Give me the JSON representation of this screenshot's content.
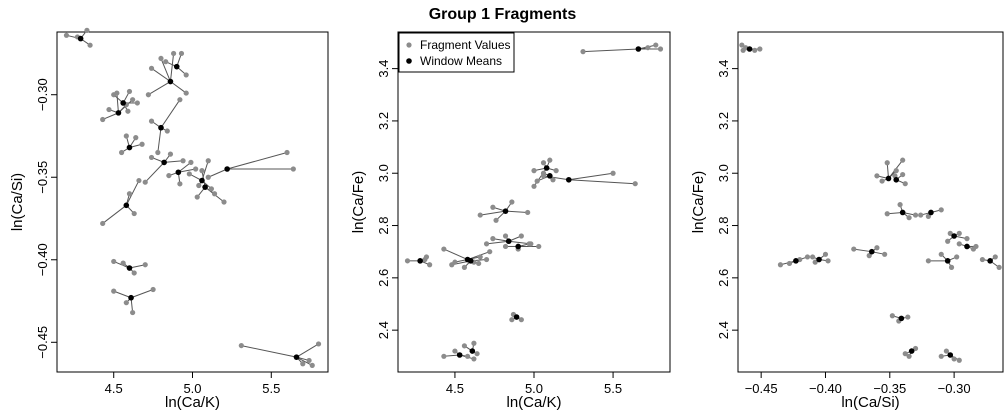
{
  "title": "Group 1 Fragments",
  "colors": {
    "fragment": "#8c8c8c",
    "mean": "#000000",
    "segment": "#555555"
  },
  "legend": {
    "fragment_label": "Fragment Values",
    "mean_label": "Window Means"
  },
  "chart_data": [
    {
      "type": "scatter",
      "xlabel": "ln(Ca/K)",
      "ylabel": "ln(Ca/Si)",
      "xlim": [
        4.14,
        5.86
      ],
      "ylim": [
        -0.468,
        -0.262
      ],
      "xticks": [
        4.5,
        5.0,
        5.5
      ],
      "xtick_labels": [
        "4.5",
        "5.0",
        "5.5"
      ],
      "yticks": [
        -0.45,
        -0.4,
        -0.35,
        -0.3
      ],
      "ytick_labels": [
        "−0.45",
        "−0.40",
        "−0.35",
        "−0.30"
      ],
      "groups": [
        {
          "mean": [
            4.29,
            -0.266
          ],
          "points": [
            [
              4.2,
              -0.264
            ],
            [
              4.27,
              -0.265
            ],
            [
              4.33,
              -0.261
            ],
            [
              4.35,
              -0.27
            ]
          ]
        },
        {
          "mean": [
            4.53,
            -0.311
          ],
          "points": [
            [
              4.43,
              -0.315
            ],
            [
              4.47,
              -0.309
            ],
            [
              4.52,
              -0.299
            ],
            [
              4.58,
              -0.306
            ],
            [
              4.62,
              -0.303
            ]
          ]
        },
        {
          "mean": [
            4.56,
            -0.305
          ],
          "points": [
            [
              4.5,
              -0.3
            ],
            [
              4.6,
              -0.298
            ],
            [
              4.65,
              -0.305
            ],
            [
              4.59,
              -0.31
            ]
          ]
        },
        {
          "mean": [
            4.86,
            -0.292
          ],
          "points": [
            [
              4.74,
              -0.284
            ],
            [
              4.8,
              -0.278
            ],
            [
              4.88,
              -0.275
            ],
            [
              4.96,
              -0.299
            ],
            [
              4.72,
              -0.3
            ]
          ]
        },
        {
          "mean": [
            4.9,
            -0.283
          ],
          "points": [
            [
              4.83,
              -0.28
            ],
            [
              4.93,
              -0.275
            ],
            [
              4.96,
              -0.288
            ]
          ]
        },
        {
          "mean": [
            4.6,
            -0.332
          ],
          "points": [
            [
              4.55,
              -0.335
            ],
            [
              4.58,
              -0.325
            ],
            [
              4.64,
              -0.326
            ],
            [
              4.68,
              -0.33
            ]
          ]
        },
        {
          "mean": [
            4.8,
            -0.32
          ],
          "points": [
            [
              4.74,
              -0.316
            ],
            [
              4.84,
              -0.322
            ],
            [
              4.92,
              -0.303
            ],
            [
              4.78,
              -0.335
            ]
          ]
        },
        {
          "mean": [
            4.82,
            -0.341
          ],
          "points": [
            [
              4.74,
              -0.338
            ],
            [
              4.86,
              -0.336
            ],
            [
              4.94,
              -0.34
            ],
            [
              4.7,
              -0.353
            ]
          ]
        },
        {
          "mean": [
            4.91,
            -0.347
          ],
          "points": [
            [
              4.85,
              -0.349
            ],
            [
              4.92,
              -0.354
            ],
            [
              4.99,
              -0.341
            ],
            [
              5.02,
              -0.345
            ]
          ]
        },
        {
          "mean": [
            5.06,
            -0.352
          ],
          "points": [
            [
              4.98,
              -0.348
            ],
            [
              5.04,
              -0.355
            ],
            [
              5.1,
              -0.34
            ],
            [
              5.12,
              -0.357
            ]
          ]
        },
        {
          "mean": [
            5.08,
            -0.356
          ],
          "points": [
            [
              5.03,
              -0.362
            ],
            [
              5.14,
              -0.36
            ],
            [
              5.2,
              -0.365
            ],
            [
              5.06,
              -0.346
            ]
          ]
        },
        {
          "mean": [
            5.22,
            -0.345
          ],
          "points": [
            [
              5.1,
              -0.35
            ],
            [
              5.64,
              -0.345
            ],
            [
              5.6,
              -0.335
            ]
          ]
        },
        {
          "mean": [
            4.58,
            -0.367
          ],
          "points": [
            [
              4.43,
              -0.378
            ],
            [
              4.6,
              -0.36
            ],
            [
              4.66,
              -0.352
            ],
            [
              4.63,
              -0.372
            ]
          ]
        },
        {
          "mean": [
            4.6,
            -0.405
          ],
          "points": [
            [
              4.5,
              -0.401
            ],
            [
              4.56,
              -0.402
            ],
            [
              4.63,
              -0.408
            ],
            [
              4.7,
              -0.403
            ]
          ]
        },
        {
          "mean": [
            4.61,
            -0.423
          ],
          "points": [
            [
              4.5,
              -0.419
            ],
            [
              4.58,
              -0.426
            ],
            [
              4.62,
              -0.432
            ],
            [
              4.75,
              -0.418
            ]
          ]
        },
        {
          "mean": [
            5.66,
            -0.459
          ],
          "points": [
            [
              5.31,
              -0.452
            ],
            [
              5.7,
              -0.463
            ],
            [
              5.76,
              -0.464
            ],
            [
              5.8,
              -0.451
            ],
            [
              5.74,
              -0.461
            ]
          ]
        }
      ]
    },
    {
      "type": "scatter",
      "xlabel": "ln(Ca/K)",
      "ylabel": "ln(Ca/Fe)",
      "xlim": [
        4.14,
        5.86
      ],
      "ylim": [
        2.24,
        3.54
      ],
      "xticks": [
        4.5,
        5.0,
        5.5
      ],
      "xtick_labels": [
        "4.5",
        "5.0",
        "5.5"
      ],
      "yticks": [
        2.4,
        2.6,
        2.8,
        3.0,
        3.2,
        3.4
      ],
      "ytick_labels": [
        "2.4",
        "2.6",
        "2.8",
        "3.0",
        "3.2",
        "3.4"
      ],
      "legend_position": "top-left",
      "groups": [
        {
          "mean": [
            5.66,
            3.475
          ],
          "points": [
            [
              5.31,
              3.465
            ],
            [
              5.72,
              3.48
            ],
            [
              5.77,
              3.49
            ],
            [
              5.8,
              3.475
            ]
          ]
        },
        {
          "mean": [
            5.22,
            2.975
          ],
          "points": [
            [
              5.06,
              2.99
            ],
            [
              5.5,
              3.0
            ],
            [
              5.64,
              2.96
            ]
          ]
        },
        {
          "mean": [
            5.08,
            3.02
          ],
          "points": [
            [
              5.0,
              3.01
            ],
            [
              5.06,
              3.04
            ],
            [
              5.1,
              3.05
            ],
            [
              5.14,
              3.01
            ],
            [
              5.0,
              2.95
            ]
          ]
        },
        {
          "mean": [
            5.1,
            2.99
          ],
          "points": [
            [
              5.02,
              2.97
            ],
            [
              5.12,
              2.975
            ],
            [
              5.06,
              3.0
            ]
          ]
        },
        {
          "mean": [
            4.82,
            2.855
          ],
          "points": [
            [
              4.66,
              2.84
            ],
            [
              4.74,
              2.87
            ],
            [
              4.86,
              2.89
            ],
            [
              4.96,
              2.85
            ],
            [
              4.76,
              2.82
            ]
          ]
        },
        {
          "mean": [
            4.84,
            2.74
          ],
          "points": [
            [
              4.74,
              2.75
            ],
            [
              4.82,
              2.76
            ],
            [
              4.92,
              2.76
            ],
            [
              4.98,
              2.73
            ],
            [
              4.7,
              2.73
            ]
          ]
        },
        {
          "mean": [
            4.9,
            2.72
          ],
          "points": [
            [
              4.82,
              2.72
            ],
            [
              4.9,
              2.71
            ],
            [
              4.97,
              2.73
            ],
            [
              5.03,
              2.72
            ]
          ]
        },
        {
          "mean": [
            4.58,
            2.67
          ],
          "points": [
            [
              4.43,
              2.71
            ],
            [
              4.5,
              2.66
            ],
            [
              4.66,
              2.68
            ],
            [
              4.72,
              2.7
            ],
            [
              4.62,
              2.66
            ]
          ]
        },
        {
          "mean": [
            4.6,
            2.665
          ],
          "points": [
            [
              4.48,
              2.65
            ],
            [
              4.56,
              2.64
            ],
            [
              4.65,
              2.655
            ],
            [
              4.7,
              2.67
            ]
          ]
        },
        {
          "mean": [
            4.28,
            2.665
          ],
          "points": [
            [
              4.2,
              2.665
            ],
            [
              4.31,
              2.67
            ],
            [
              4.34,
              2.65
            ],
            [
              4.32,
              2.68
            ]
          ]
        },
        {
          "mean": [
            4.89,
            2.45
          ],
          "points": [
            [
              4.87,
              2.46
            ],
            [
              4.92,
              2.44
            ],
            [
              4.86,
              2.44
            ]
          ]
        },
        {
          "mean": [
            4.53,
            2.305
          ],
          "points": [
            [
              4.43,
              2.3
            ],
            [
              4.5,
              2.32
            ],
            [
              4.58,
              2.3
            ],
            [
              4.62,
              2.29
            ]
          ]
        },
        {
          "mean": [
            4.61,
            2.32
          ],
          "points": [
            [
              4.56,
              2.34
            ],
            [
              4.62,
              2.35
            ],
            [
              4.64,
              2.31
            ]
          ]
        }
      ]
    },
    {
      "type": "scatter",
      "xlabel": "ln(Ca/Si)",
      "ylabel": "ln(Ca/Fe)",
      "xlim": [
        -0.468,
        -0.262
      ],
      "ylim": [
        2.24,
        3.54
      ],
      "xticks": [
        -0.45,
        -0.4,
        -0.35,
        -0.3
      ],
      "xtick_labels": [
        "−0.45",
        "−0.40",
        "−0.35",
        "−0.30"
      ],
      "yticks": [
        2.4,
        2.6,
        2.8,
        3.0,
        3.2,
        3.4
      ],
      "ytick_labels": [
        "2.4",
        "2.6",
        "2.8",
        "3.0",
        "3.2",
        "3.4"
      ],
      "groups": [
        {
          "mean": [
            -0.459,
            3.475
          ],
          "points": [
            [
              -0.465,
              3.49
            ],
            [
              -0.462,
              3.48
            ],
            [
              -0.455,
              3.47
            ],
            [
              -0.451,
              3.475
            ],
            [
              -0.464,
              3.47
            ]
          ]
        },
        {
          "mean": [
            -0.351,
            2.98
          ],
          "points": [
            [
              -0.36,
              2.99
            ],
            [
              -0.352,
              3.04
            ],
            [
              -0.345,
              3.01
            ],
            [
              -0.34,
              3.05
            ],
            [
              -0.356,
              2.97
            ]
          ]
        },
        {
          "mean": [
            -0.345,
            2.975
          ],
          "points": [
            [
              -0.34,
              2.995
            ],
            [
              -0.338,
              2.96
            ],
            [
              -0.346,
              2.99
            ]
          ]
        },
        {
          "mean": [
            -0.34,
            2.85
          ],
          "points": [
            [
              -0.352,
              2.845
            ],
            [
              -0.342,
              2.88
            ],
            [
              -0.335,
              2.83
            ],
            [
              -0.33,
              2.84
            ]
          ]
        },
        {
          "mean": [
            -0.318,
            2.85
          ],
          "points": [
            [
              -0.326,
              2.84
            ],
            [
              -0.31,
              2.86
            ],
            [
              -0.32,
              2.835
            ]
          ]
        },
        {
          "mean": [
            -0.364,
            2.7
          ],
          "points": [
            [
              -0.378,
              2.71
            ],
            [
              -0.36,
              2.715
            ],
            [
              -0.354,
              2.69
            ],
            [
              -0.366,
              2.685
            ]
          ]
        },
        {
          "mean": [
            -0.423,
            2.665
          ],
          "points": [
            [
              -0.435,
              2.65
            ],
            [
              -0.42,
              2.67
            ],
            [
              -0.414,
              2.68
            ],
            [
              -0.428,
              2.655
            ]
          ]
        },
        {
          "mean": [
            -0.405,
            2.67
          ],
          "points": [
            [
              -0.41,
              2.68
            ],
            [
              -0.4,
              2.69
            ],
            [
              -0.398,
              2.665
            ],
            [
              -0.408,
              2.66
            ]
          ]
        },
        {
          "mean": [
            -0.305,
            2.665
          ],
          "points": [
            [
              -0.32,
              2.665
            ],
            [
              -0.31,
              2.69
            ],
            [
              -0.298,
              2.68
            ],
            [
              -0.302,
              2.64
            ]
          ]
        },
        {
          "mean": [
            -0.3,
            2.76
          ],
          "points": [
            [
              -0.305,
              2.74
            ],
            [
              -0.296,
              2.77
            ],
            [
              -0.29,
              2.75
            ],
            [
              -0.303,
              2.77
            ]
          ]
        },
        {
          "mean": [
            -0.29,
            2.72
          ],
          "points": [
            [
              -0.296,
              2.73
            ],
            [
              -0.285,
              2.71
            ],
            [
              -0.283,
              2.72
            ]
          ]
        },
        {
          "mean": [
            -0.272,
            2.665
          ],
          "points": [
            [
              -0.278,
              2.67
            ],
            [
              -0.268,
              2.68
            ],
            [
              -0.265,
              2.64
            ]
          ]
        },
        {
          "mean": [
            -0.341,
            2.445
          ],
          "points": [
            [
              -0.348,
              2.455
            ],
            [
              -0.336,
              2.45
            ],
            [
              -0.343,
              2.435
            ]
          ]
        },
        {
          "mean": [
            -0.333,
            2.32
          ],
          "points": [
            [
              -0.338,
              2.31
            ],
            [
              -0.33,
              2.33
            ],
            [
              -0.335,
              2.3
            ]
          ]
        },
        {
          "mean": [
            -0.303,
            2.305
          ],
          "points": [
            [
              -0.31,
              2.3
            ],
            [
              -0.3,
              2.29
            ],
            [
              -0.296,
              2.285
            ],
            [
              -0.306,
              2.32
            ]
          ]
        }
      ]
    }
  ]
}
